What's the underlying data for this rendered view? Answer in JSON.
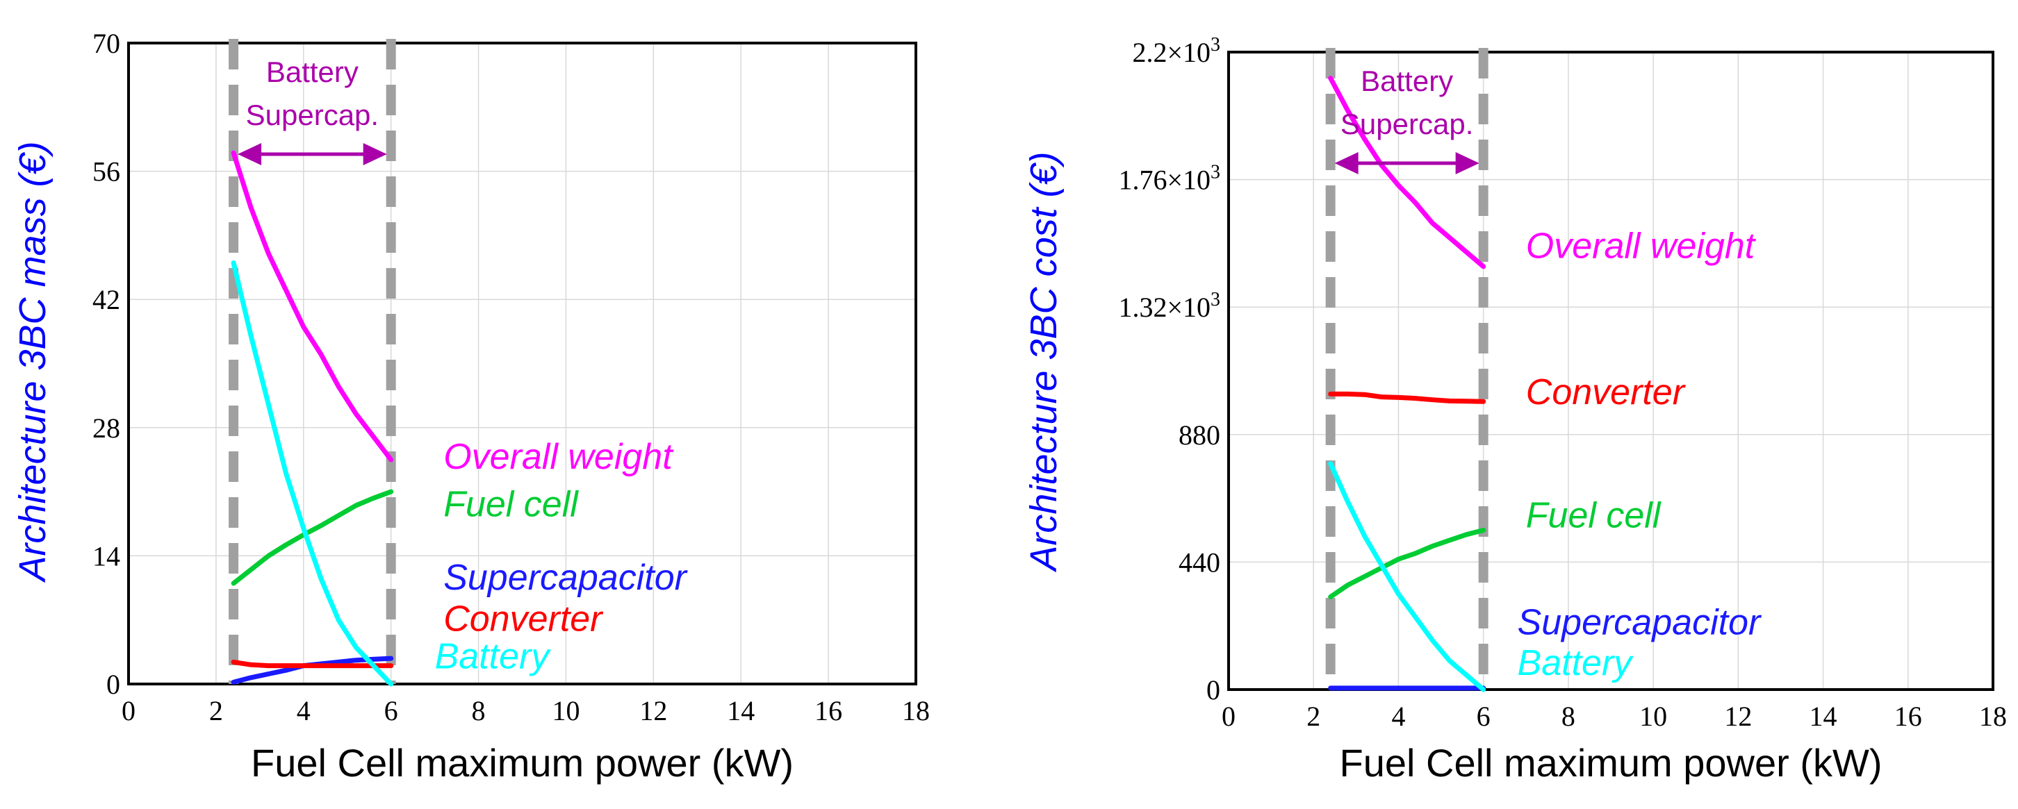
{
  "colors": {
    "overall": "#ff00ff",
    "fuel_cell": "#00cc33",
    "supercapacitor": "#1a1aff",
    "converter": "#ff0000",
    "battery": "#00ffff",
    "ylabel": "#0000ff",
    "annotation": "#aa00aa",
    "dashed": "#a0a0a0"
  },
  "chart_data": [
    {
      "type": "line",
      "xlabel": "Fuel Cell maximum power (kW)",
      "ylabel": "Architecture 3BC mass (€)",
      "xlim": [
        0,
        18
      ],
      "ylim": [
        0,
        70
      ],
      "xticks": [
        0,
        2,
        4,
        6,
        8,
        10,
        12,
        14,
        16,
        18
      ],
      "xtick_labels": [
        "0",
        "2",
        "4",
        "6",
        "8",
        "10",
        "12",
        "14",
        "16",
        "18"
      ],
      "yticks": [
        0,
        14,
        28,
        42,
        56,
        70
      ],
      "ytick_labels": [
        "0",
        "14",
        "28",
        "42",
        "56",
        "70"
      ],
      "bounds": [
        2.4,
        6.0
      ],
      "bounds_label_line1": "Battery",
      "bounds_label_line2": "Supercap.",
      "series": [
        {
          "name": "Overall weight",
          "key": "overall",
          "x": [
            2.4,
            2.8,
            3.2,
            3.6,
            4.0,
            4.4,
            4.8,
            5.2,
            5.6,
            6.0
          ],
          "y": [
            58,
            52,
            47,
            43,
            39,
            36,
            32.5,
            29.5,
            27,
            24.5
          ],
          "label_x": 7.2,
          "label_y": 23.5
        },
        {
          "name": "Fuel cell",
          "key": "fuel_cell",
          "x": [
            2.4,
            2.8,
            3.2,
            3.6,
            4.0,
            4.4,
            4.8,
            5.2,
            5.6,
            6.0
          ],
          "y": [
            11,
            12.5,
            14,
            15.2,
            16.3,
            17.3,
            18.4,
            19.5,
            20.3,
            21.0
          ],
          "label_x": 7.2,
          "label_y": 18.3
        },
        {
          "name": "Supercapacitor",
          "key": "supercapacitor",
          "x": [
            2.4,
            2.8,
            3.2,
            3.6,
            4.0,
            4.4,
            4.8,
            5.2,
            5.6,
            6.0
          ],
          "y": [
            0.2,
            0.7,
            1.1,
            1.5,
            2.0,
            2.2,
            2.4,
            2.6,
            2.7,
            2.8
          ],
          "label_x": 7.2,
          "label_y": 10.3
        },
        {
          "name": "Converter",
          "key": "converter",
          "x": [
            2.4,
            2.8,
            3.2,
            3.6,
            4.0,
            4.4,
            4.8,
            5.2,
            5.6,
            6.0
          ],
          "y": [
            2.4,
            2.1,
            2.0,
            2.0,
            2.0,
            2.0,
            2.0,
            2.0,
            2.0,
            2.0
          ],
          "label_x": 7.2,
          "label_y": 5.8
        },
        {
          "name": "Battery",
          "key": "battery",
          "x": [
            2.4,
            2.8,
            3.2,
            3.6,
            4.0,
            4.4,
            4.8,
            5.2,
            5.6,
            6.0
          ],
          "y": [
            46,
            38,
            30.5,
            23,
            17,
            11.5,
            7,
            4,
            2,
            0
          ],
          "label_x": 7.0,
          "label_y": 1.7
        }
      ]
    },
    {
      "type": "line",
      "xlabel": "Fuel Cell maximum power (kW)",
      "ylabel": "Architecture 3BC cost (€)",
      "xlim": [
        0,
        18
      ],
      "ylim": [
        0,
        2200
      ],
      "xticks": [
        0,
        2,
        4,
        6,
        8,
        10,
        12,
        14,
        16,
        18
      ],
      "xtick_labels": [
        "0",
        "2",
        "4",
        "6",
        "8",
        "10",
        "12",
        "14",
        "16",
        "18"
      ],
      "yticks": [
        0,
        440,
        880,
        1320,
        1760,
        2200
      ],
      "ytick_labels": [
        "0",
        "440",
        "880",
        "1.32×10",
        "1.76×10",
        "2.2×10"
      ],
      "ytick_exponents": [
        "",
        "",
        "",
        "3",
        "3",
        "3"
      ],
      "bounds": [
        2.4,
        6.0
      ],
      "bounds_label_line1": "Battery",
      "bounds_label_line2": "Supercap.",
      "series": [
        {
          "name": "Overall weight",
          "key": "overall",
          "x": [
            2.4,
            2.8,
            3.2,
            3.6,
            4.0,
            4.4,
            4.8,
            5.2,
            5.6,
            6.0
          ],
          "y": [
            2110,
            2000,
            1900,
            1810,
            1740,
            1680,
            1610,
            1560,
            1510,
            1460
          ],
          "label_x": 7.0,
          "label_y": 1490
        },
        {
          "name": "Converter",
          "key": "converter",
          "x": [
            2.4,
            2.8,
            3.2,
            3.6,
            4.0,
            4.4,
            4.8,
            5.2,
            5.6,
            6.0
          ],
          "y": [
            1020,
            1020,
            1018,
            1010,
            1008,
            1005,
            1000,
            996,
            995,
            994
          ],
          "label_x": 7.0,
          "label_y": 985
        },
        {
          "name": "Fuel cell",
          "key": "fuel_cell",
          "x": [
            2.4,
            2.8,
            3.2,
            3.6,
            4.0,
            4.4,
            4.8,
            5.2,
            5.6,
            6.0
          ],
          "y": [
            320,
            360,
            390,
            420,
            450,
            470,
            495,
            515,
            535,
            550
          ],
          "label_x": 7.0,
          "label_y": 560
        },
        {
          "name": "Supercapacitor",
          "key": "supercapacitor",
          "x": [
            2.4,
            2.8,
            3.2,
            3.6,
            4.0,
            4.4,
            4.8,
            5.2,
            5.6,
            6.0
          ],
          "y": [
            5,
            5,
            5,
            5,
            5,
            5,
            5,
            5,
            5,
            5
          ],
          "label_x": 6.8,
          "label_y": 190
        },
        {
          "name": "Battery",
          "key": "battery",
          "x": [
            2.4,
            2.8,
            3.2,
            3.6,
            4.0,
            4.4,
            4.8,
            5.2,
            5.6,
            6.0
          ],
          "y": [
            780,
            650,
            530,
            430,
            330,
            250,
            170,
            100,
            50,
            0
          ],
          "label_x": 6.8,
          "label_y": 50
        }
      ]
    }
  ]
}
